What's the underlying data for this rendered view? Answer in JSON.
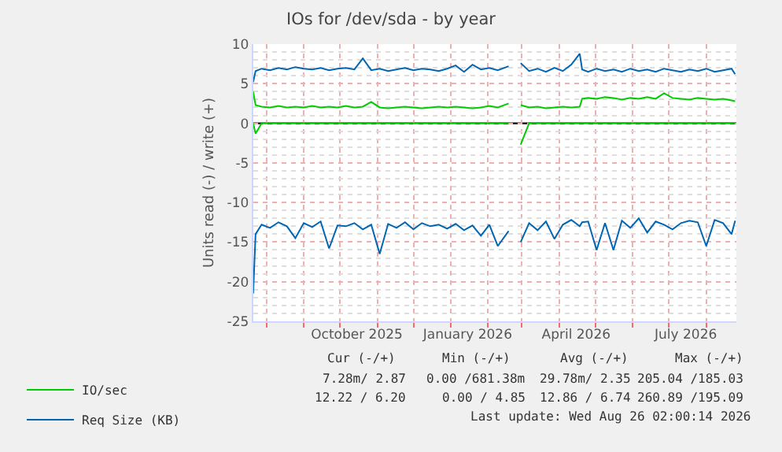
{
  "chart_data": {
    "type": "line",
    "title": "IOs for /dev/sda - by year",
    "ylabel": "Units read (-) / write (+)",
    "x": [
      "2025-07-21",
      "2025-07-23",
      "2025-07-28",
      "2025-08-04",
      "2025-08-11",
      "2025-08-18",
      "2025-08-25",
      "2025-09-01",
      "2025-09-08",
      "2025-09-15",
      "2025-09-22",
      "2025-09-29",
      "2025-10-06",
      "2025-10-13",
      "2025-10-20",
      "2025-10-27",
      "2025-11-03",
      "2025-11-10",
      "2025-11-17",
      "2025-11-24",
      "2025-12-01",
      "2025-12-08",
      "2025-12-15",
      "2025-12-22",
      "2025-12-29",
      "2026-01-05",
      "2026-01-12",
      "2026-01-19",
      "2026-01-26",
      "2026-02-02",
      "2026-02-09",
      "2026-02-18",
      "2026-02-22",
      "2026-02-28",
      "2026-03-07",
      "2026-03-14",
      "2026-03-21",
      "2026-03-28",
      "2026-04-04",
      "2026-04-11",
      "2026-04-18",
      "2026-04-20",
      "2026-04-25",
      "2026-05-02",
      "2026-05-09",
      "2026-05-16",
      "2026-05-23",
      "2026-05-30",
      "2026-06-06",
      "2026-06-13",
      "2026-06-20",
      "2026-06-27",
      "2026-07-04",
      "2026-07-11",
      "2026-07-18",
      "2026-07-25",
      "2026-08-01",
      "2026-08-08",
      "2026-08-15",
      "2026-08-22",
      "2026-08-25"
    ],
    "series": [
      {
        "name": "IO/sec",
        "color": "#00cc00",
        "values": [
          4.0,
          2.3,
          2.1,
          2.0,
          2.2,
          2.0,
          2.1,
          2.0,
          2.2,
          2.0,
          2.1,
          2.0,
          2.2,
          2.0,
          2.1,
          2.7,
          2.0,
          1.9,
          2.0,
          2.1,
          2.0,
          1.9,
          2.0,
          2.1,
          2.0,
          2.1,
          2.0,
          1.9,
          2.0,
          2.2,
          2.0,
          2.5,
          null,
          2.3,
          2.0,
          2.1,
          1.9,
          2.0,
          2.1,
          2.0,
          2.1,
          3.1,
          3.2,
          3.1,
          3.3,
          3.2,
          3.0,
          3.2,
          3.1,
          3.3,
          3.1,
          3.8,
          3.2,
          3.1,
          3.0,
          3.2,
          3.1,
          3.0,
          3.1,
          2.9,
          2.8
        ]
      },
      {
        "color": "#00cc00",
        "values": [
          0,
          -1.3,
          0,
          0,
          0,
          0,
          0,
          0,
          0,
          0,
          0,
          0,
          0,
          0,
          0,
          0,
          0,
          0,
          0,
          0,
          0,
          0,
          0,
          0,
          0,
          0,
          0,
          0,
          0,
          0,
          0,
          0,
          null,
          -2.7,
          0,
          0,
          0,
          0,
          0,
          0,
          0,
          0,
          0,
          0,
          0,
          0,
          0,
          0,
          0,
          0,
          0,
          0,
          0,
          0,
          0,
          0,
          0,
          0,
          0,
          0,
          0
        ]
      },
      {
        "name": "Req Size (KB)",
        "color": "#0066b3",
        "values": [
          5.2,
          6.6,
          6.9,
          6.7,
          7.0,
          6.8,
          7.1,
          6.9,
          6.8,
          7.0,
          6.7,
          6.9,
          7.0,
          6.8,
          8.2,
          6.7,
          6.9,
          6.6,
          6.8,
          7.0,
          6.7,
          6.9,
          6.8,
          6.6,
          6.9,
          7.3,
          6.5,
          7.4,
          6.8,
          7.0,
          6.7,
          7.2,
          null,
          7.6,
          6.6,
          6.9,
          6.5,
          7.0,
          6.6,
          7.4,
          8.8,
          6.8,
          6.5,
          6.9,
          6.6,
          6.8,
          6.5,
          6.9,
          6.6,
          6.8,
          6.5,
          6.9,
          6.7,
          6.5,
          6.8,
          6.6,
          6.9,
          6.5,
          6.7,
          6.9,
          6.2
        ]
      },
      {
        "color": "#0066b3",
        "values": [
          -21.5,
          -14.0,
          -12.8,
          -13.2,
          -12.5,
          -13.0,
          -14.5,
          -12.6,
          -13.1,
          -12.4,
          -15.8,
          -12.9,
          -13.0,
          -12.6,
          -13.4,
          -12.8,
          -16.5,
          -12.7,
          -13.2,
          -12.5,
          -13.4,
          -12.6,
          -13.0,
          -12.8,
          -13.3,
          -12.7,
          -13.5,
          -12.9,
          -14.2,
          -12.8,
          -15.5,
          -13.6,
          null,
          -15.0,
          -12.6,
          -13.5,
          -12.4,
          -14.6,
          -12.8,
          -12.2,
          -13.0,
          -12.5,
          -12.4,
          -16.0,
          -12.6,
          -16.0,
          -12.3,
          -13.2,
          -12.0,
          -13.8,
          -12.4,
          -12.8,
          -13.4,
          -12.6,
          -12.3,
          -12.5,
          -15.5,
          -12.2,
          -12.6,
          -14.0,
          -12.3
        ]
      }
    ],
    "xlim": [
      "2025-07-21",
      "2026-08-26"
    ],
    "xticks": [
      {
        "value": "2025-10-15",
        "label": "October 2025"
      },
      {
        "value": "2026-01-15",
        "label": "January 2026"
      },
      {
        "value": "2026-04-15",
        "label": "April 2026"
      },
      {
        "value": "2026-07-15",
        "label": "July 2026"
      }
    ],
    "ylim": [
      -25,
      10
    ],
    "yticks": [
      -25,
      -20,
      -15,
      -10,
      -5,
      0,
      5,
      10
    ],
    "ref_lines": [
      {
        "axis": "y",
        "value": 0,
        "color": "#000000"
      }
    ],
    "grid": true,
    "legend": "bottom left",
    "marker": "none",
    "line_style": "solid",
    "annotations": [
      "Cur (-/+)",
      "Min (-/+)",
      "Avg (-/+)",
      "Max (-/+)",
      "7.28m/ 2.87",
      "0.00 /681.38m",
      "29.78m/ 2.35",
      "205.04 /185.03",
      "12.22 / 6.20",
      "0.00 / 4.85",
      "12.86 / 6.74",
      "260.89 /195.09",
      "Last update: Wed Aug 26 02:00:14 2026"
    ]
  }
}
